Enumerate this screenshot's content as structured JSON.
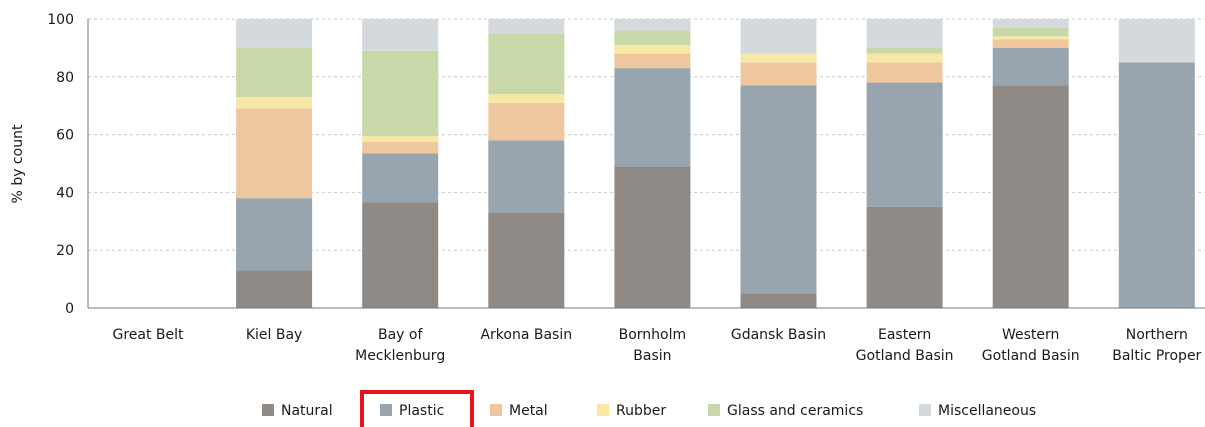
{
  "chart_data": {
    "type": "bar",
    "stacked": true,
    "ylabel": "% by count",
    "ylim": [
      0,
      100
    ],
    "yticks": [
      0,
      20,
      40,
      60,
      80,
      100
    ],
    "grid": true,
    "legend_position": "bottom",
    "categories": [
      [
        "Great Belt"
      ],
      [
        "Kiel Bay"
      ],
      [
        "Bay of",
        "Mecklenburg"
      ],
      [
        "Arkona Basin"
      ],
      [
        "Bornholm",
        "Basin"
      ],
      [
        "Gdansk Basin"
      ],
      [
        "Eastern",
        "Gotland Basin"
      ],
      [
        "Western",
        "Gotland Basin"
      ],
      [
        "Northern",
        "Baltic Proper"
      ]
    ],
    "series": [
      {
        "name": "Natural",
        "color": "#8f8a86",
        "values": [
          0,
          13,
          36.5,
          33,
          49,
          5,
          35,
          77,
          0
        ]
      },
      {
        "name": "Plastic",
        "color": "#98a5ae",
        "values": [
          0,
          25,
          17,
          25,
          34,
          72,
          43,
          13,
          85
        ]
      },
      {
        "name": "Metal",
        "color": "#eec79e",
        "values": [
          0,
          31,
          4,
          13,
          5,
          8,
          7,
          3,
          0
        ]
      },
      {
        "name": "Rubber",
        "color": "#f8e8a6",
        "values": [
          0,
          4,
          2,
          3,
          3,
          3,
          3,
          1,
          0
        ]
      },
      {
        "name": "Glass and ceramics",
        "color": "#c9d8a8",
        "values": [
          0,
          17,
          29.5,
          21,
          5,
          0,
          2,
          3,
          0
        ]
      },
      {
        "name": "Miscellaneous",
        "color": "#d4d9de",
        "values": [
          0,
          10,
          11,
          5,
          4,
          12,
          10,
          3,
          15
        ]
      }
    ]
  },
  "legend": {
    "highlighted": "Plastic",
    "highlight_color": "#e8141c"
  }
}
